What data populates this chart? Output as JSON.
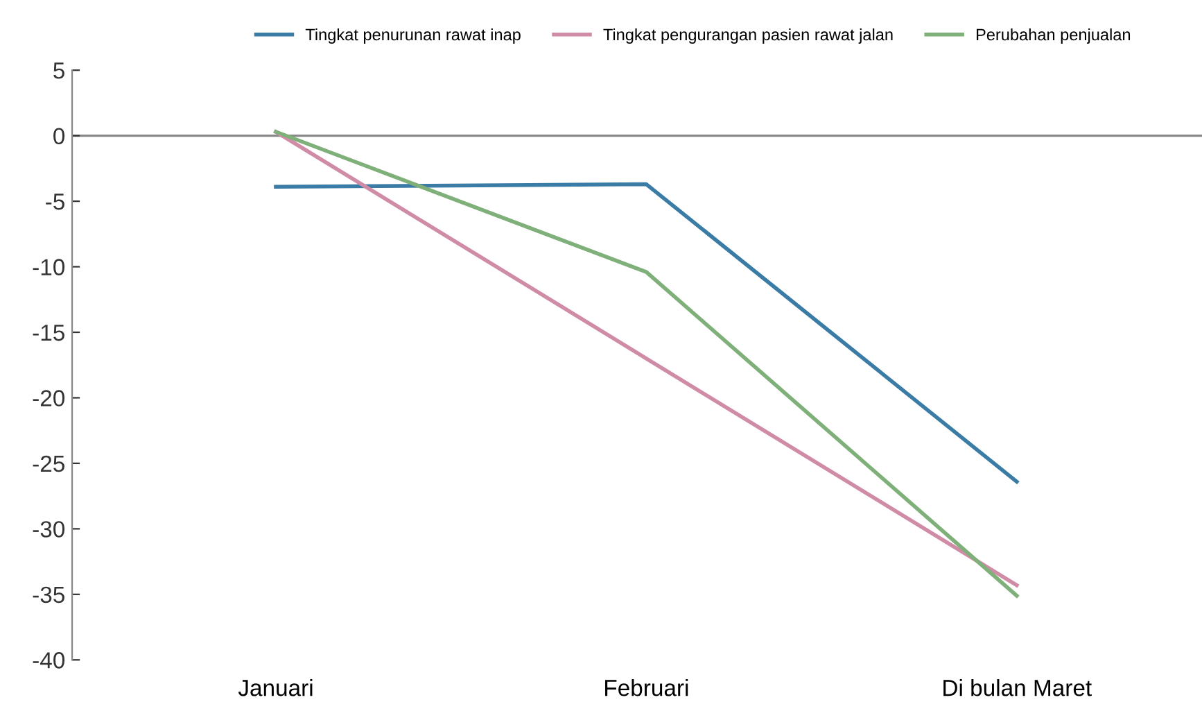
{
  "chart_data": {
    "type": "line",
    "categories": [
      "Januari",
      "Februari",
      "Di bulan Maret"
    ],
    "series": [
      {
        "name": "Tingkat penurunan rawat inap",
        "color": "#3a7ca5",
        "values": [
          -3.9,
          -3.7,
          -26.4
        ]
      },
      {
        "name": "Tingkat pengurangan pasien rawat jalan",
        "color": "#d08ca6",
        "values": [
          0.3,
          -17.0,
          -34.3
        ]
      },
      {
        "name": "Perubahan penjualan",
        "color": "#7fb07a",
        "values": [
          0.3,
          -10.4,
          -35.1
        ]
      }
    ],
    "ylim": [
      -40,
      5
    ],
    "yticks": [
      -40,
      -35,
      -30,
      -25,
      -20,
      -15,
      -10,
      -5,
      0,
      5
    ],
    "ref_lines": [
      {
        "axis": "y",
        "value": 0,
        "color": "#888888"
      }
    ],
    "grid": false,
    "legend": "top",
    "marker": "none",
    "line_style": "solid"
  }
}
